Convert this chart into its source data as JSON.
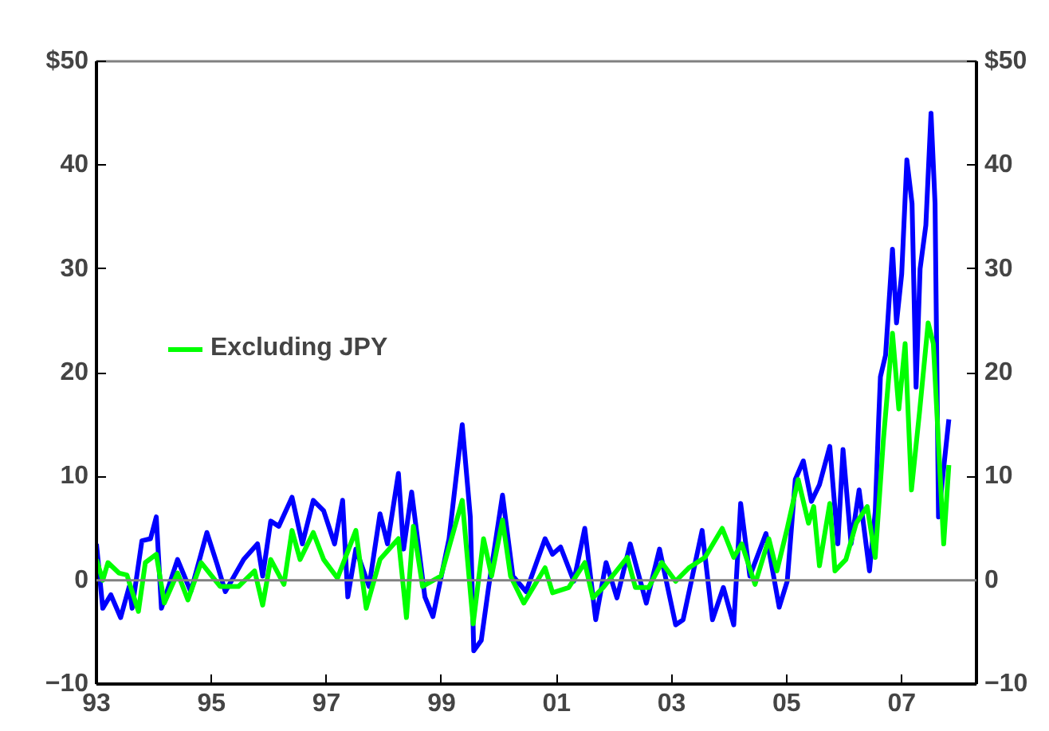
{
  "chart_data": {
    "type": "line",
    "xlim": [
      1993,
      2008.3
    ],
    "xticks": [
      {
        "value": 1993,
        "label": "93"
      },
      {
        "value": 1995,
        "label": "95"
      },
      {
        "value": 1997,
        "label": "97"
      },
      {
        "value": 1999,
        "label": "99"
      },
      {
        "value": 2001,
        "label": "01"
      },
      {
        "value": 2003,
        "label": "03"
      },
      {
        "value": 2005,
        "label": "05"
      },
      {
        "value": 2007,
        "label": "07"
      }
    ],
    "ylim": [
      -10,
      50
    ],
    "yticks": [
      -10,
      0,
      10,
      20,
      30,
      40,
      {
        "value": 50,
        "label": "$50"
      }
    ],
    "y2lim": [
      -10,
      50
    ],
    "y2ticks": [
      -10,
      0,
      10,
      20,
      30,
      40,
      {
        "value": 50,
        "label": "$50"
      }
    ],
    "legend": "top left",
    "grid": false,
    "ref_lines": [
      {
        "axis": "y",
        "value": 0,
        "color": "#808080"
      }
    ],
    "series": [
      {
        "color": "#0000ff",
        "x": [
          1993.0,
          1993.11,
          1993.25,
          1993.42,
          1993.57,
          1993.62,
          1993.79,
          1993.94,
          1994.04,
          1994.13,
          1994.41,
          1994.64,
          1994.92,
          1995.1,
          1995.24,
          1995.56,
          1995.8,
          1995.89,
          1996.03,
          1996.17,
          1996.4,
          1996.58,
          1996.77,
          1996.95,
          1997.14,
          1997.28,
          1997.37,
          1997.51,
          1997.74,
          1997.93,
          1998.06,
          1998.25,
          1998.34,
          1998.48,
          1998.71,
          1998.85,
          1999.13,
          1999.36,
          1999.5,
          1999.56,
          1999.69,
          1999.82,
          2000.06,
          2000.24,
          2000.47,
          2000.8,
          2000.93,
          2001.07,
          2001.3,
          2001.49,
          2001.68,
          2001.86,
          2002.05,
          2002.28,
          2002.56,
          2002.79,
          2003.07,
          2003.2,
          2003.53,
          2003.71,
          2003.9,
          2004.08,
          2004.2,
          2004.36,
          2004.64,
          2004.87,
          2005.01,
          2005.15,
          2005.29,
          2005.43,
          2005.57,
          2005.75,
          2005.89,
          2005.98,
          2006.12,
          2006.26,
          2006.44,
          2006.54,
          2006.6,
          2006.63,
          2006.72,
          2006.84,
          2006.91,
          2007.0,
          2007.09,
          2007.18,
          2007.25,
          2007.32,
          2007.42,
          2007.51,
          2007.58,
          2007.64,
          2007.73,
          2007.82
        ],
        "values": [
          3.5,
          -2.7,
          -1.4,
          -3.6,
          -0.6,
          -2.7,
          3.8,
          4.0,
          6.1,
          -2.7,
          2.0,
          -1.1,
          4.6,
          1.5,
          -1.1,
          2.0,
          3.5,
          0.4,
          5.7,
          5.2,
          8.0,
          3.5,
          7.7,
          6.7,
          3.5,
          7.7,
          -1.6,
          3.0,
          -0.6,
          6.4,
          3.5,
          10.3,
          3.0,
          8.5,
          -1.6,
          -3.5,
          4.0,
          15.0,
          6.1,
          -6.8,
          -5.8,
          -0.6,
          8.2,
          0.4,
          -1.1,
          4.0,
          2.5,
          3.2,
          -0.1,
          5.0,
          -3.8,
          1.7,
          -1.7,
          3.5,
          -2.2,
          3.0,
          -4.3,
          -3.8,
          4.8,
          -3.8,
          -0.7,
          -4.3,
          7.4,
          0.4,
          4.5,
          -2.6,
          -0.1,
          9.7,
          11.5,
          7.6,
          9.2,
          12.9,
          3.5,
          12.6,
          3.5,
          8.7,
          0.9,
          6.6,
          15.5,
          19.6,
          21.7,
          31.9,
          24.8,
          29.5,
          40.5,
          36.3,
          18.6,
          30.0,
          34.2,
          45.0,
          36.3,
          6.1,
          10.8,
          15.5
        ]
      },
      {
        "name": "Excluding JPY",
        "color": "#00ff00",
        "x": [
          1993.0,
          1993.11,
          1993.2,
          1993.39,
          1993.53,
          1993.73,
          1993.85,
          1994.04,
          1994.18,
          1994.41,
          1994.59,
          1994.82,
          1995.15,
          1995.47,
          1995.75,
          1995.89,
          1996.03,
          1996.26,
          1996.4,
          1996.54,
          1996.77,
          1996.95,
          1997.19,
          1997.51,
          1997.69,
          1997.93,
          1998.25,
          1998.39,
          1998.51,
          1998.67,
          1998.99,
          1999.36,
          1999.55,
          1999.73,
          1999.87,
          2000.06,
          2000.2,
          2000.43,
          2000.8,
          2000.93,
          2001.21,
          2001.49,
          2001.63,
          2001.81,
          2002.23,
          2002.37,
          2002.6,
          2002.83,
          2003.07,
          2003.3,
          2003.58,
          2003.88,
          2004.08,
          2004.22,
          2004.45,
          2004.69,
          2004.83,
          2005.01,
          2005.2,
          2005.38,
          2005.47,
          2005.57,
          2005.75,
          2005.84,
          2006.03,
          2006.21,
          2006.4,
          2006.54,
          2006.68,
          2006.84,
          2006.95,
          2007.06,
          2007.17,
          2007.31,
          2007.46,
          2007.55,
          2007.73,
          2007.82
        ],
        "values": [
          2.0,
          0.0,
          1.7,
          0.7,
          0.5,
          -3.0,
          1.7,
          2.5,
          -2.2,
          0.7,
          -1.9,
          1.7,
          -0.6,
          -0.6,
          0.9,
          -2.4,
          2.0,
          -0.4,
          4.8,
          2.0,
          4.6,
          2.0,
          0.2,
          4.8,
          -2.7,
          2.0,
          4.0,
          -3.6,
          5.2,
          -0.6,
          0.4,
          7.7,
          -4.2,
          4.0,
          0.4,
          5.8,
          0.4,
          -2.2,
          1.2,
          -1.2,
          -0.7,
          1.7,
          -1.7,
          -0.7,
          2.2,
          -0.7,
          -0.7,
          1.7,
          -0.1,
          1.2,
          2.2,
          5.0,
          2.2,
          3.5,
          -0.4,
          4.0,
          0.9,
          5.0,
          9.7,
          5.5,
          7.1,
          1.4,
          7.4,
          0.9,
          2.0,
          5.5,
          7.1,
          2.2,
          13.4,
          23.8,
          16.5,
          22.8,
          8.7,
          16.2,
          24.8,
          22.8,
          3.5,
          11.1
        ]
      }
    ]
  }
}
